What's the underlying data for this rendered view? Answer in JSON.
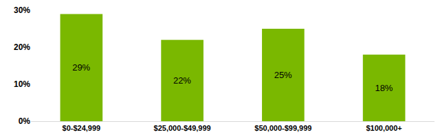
{
  "chart_data": {
    "type": "bar",
    "categories": [
      "$0-$24,999",
      "$25,000-$49,999",
      "$50,000-$99,999",
      "$100,000+"
    ],
    "values": [
      29,
      22,
      25,
      18
    ],
    "value_labels": [
      "29%",
      "22%",
      "25%",
      "18%"
    ],
    "data_labels": true,
    "color": "#7ab800",
    "ylim": [
      0,
      30
    ],
    "yticks": [
      {
        "value": 0,
        "label": "0%"
      },
      {
        "value": 10,
        "label": "10%"
      },
      {
        "value": 20,
        "label": "20%"
      },
      {
        "value": 30,
        "label": "30%"
      }
    ],
    "grid": false
  }
}
